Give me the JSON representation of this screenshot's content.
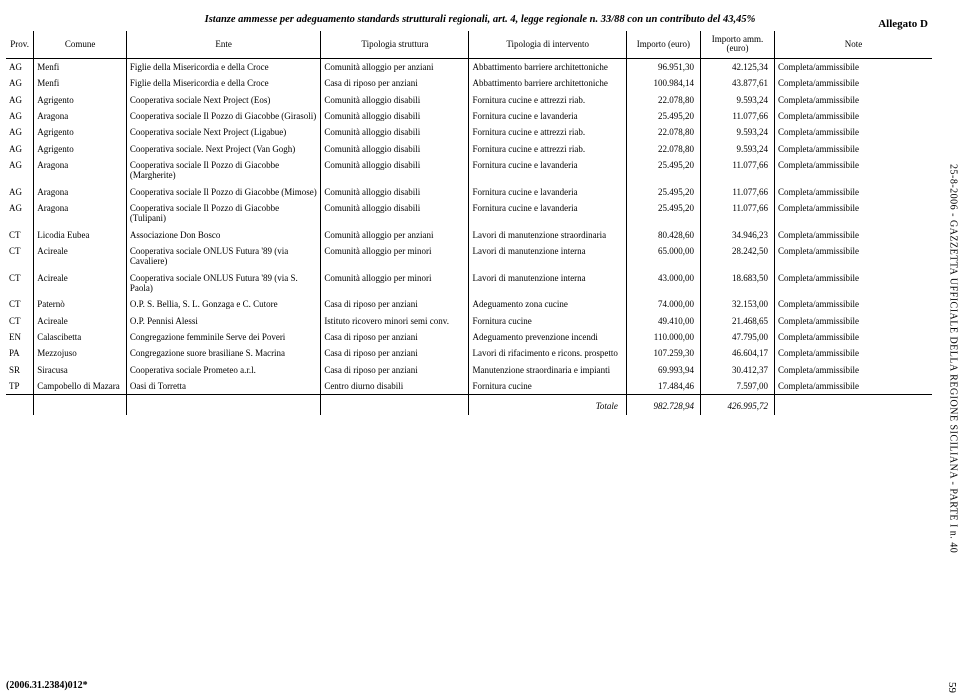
{
  "allegato": "Allegato D",
  "doc_title": "Istanze ammesse per adeguamento standards strutturali regionali, art. 4, legge regionale n. 33/88 con un contributo del 43,45%",
  "side_text": "25-8-2006 - GAZZETTA UFFICIALE DELLA REGIONE SICILIANA - PARTE I n. 40",
  "page_num": "59",
  "footer_code": "(2006.31.2384)012*",
  "headers": {
    "prov": "Prov.",
    "comune": "Comune",
    "ente": "Ente",
    "struttura": "Tipologia struttura",
    "intervento": "Tipologia di intervento",
    "importo": "Importo\n(euro)",
    "importo_amm": "Importo\namm.\n(euro)",
    "note": "Note"
  },
  "rows": [
    {
      "prov": "AG",
      "comune": "Menfi",
      "ente": "Figlie della Misericordia e della Croce",
      "strut": "Comunità alloggio per anziani",
      "interv": "Abbattimento barriere architettoniche",
      "imp1": "96.951,30",
      "imp2": "42.125,34",
      "note": "Completa/ammissibile"
    },
    {
      "prov": "AG",
      "comune": "Menfi",
      "ente": "Figlie della Misericordia e della Croce",
      "strut": "Casa di riposo per anziani",
      "interv": "Abbattimento barriere architettoniche",
      "imp1": "100.984,14",
      "imp2": "43.877,61",
      "note": "Completa/ammissibile"
    },
    {
      "prov": "AG",
      "comune": "Agrigento",
      "ente": "Cooperativa sociale Next Project (Eos)",
      "strut": "Comunità alloggio disabili",
      "interv": "Fornitura cucine e attrezzi riab.",
      "imp1": "22.078,80",
      "imp2": "9.593,24",
      "note": "Completa/ammissibile"
    },
    {
      "prov": "AG",
      "comune": "Aragona",
      "ente": "Cooperativa sociale Il Pozzo di Giacobbe (Girasoli)",
      "strut": "Comunità alloggio disabili",
      "interv": "Fornitura cucine e lavanderia",
      "imp1": "25.495,20",
      "imp2": "11.077,66",
      "note": "Completa/ammissibile"
    },
    {
      "prov": "AG",
      "comune": "Agrigento",
      "ente": "Cooperativa sociale Next Project (Ligabue)",
      "strut": "Comunità alloggio disabili",
      "interv": "Fornitura cucine e attrezzi riab.",
      "imp1": "22.078,80",
      "imp2": "9.593,24",
      "note": "Completa/ammissibile"
    },
    {
      "prov": "AG",
      "comune": "Agrigento",
      "ente": "Cooperativa sociale. Next Project (Van Gogh)",
      "strut": "Comunità alloggio disabili",
      "interv": "Fornitura cucine e attrezzi riab.",
      "imp1": "22.078,80",
      "imp2": "9.593,24",
      "note": "Completa/ammissibile"
    },
    {
      "prov": "AG",
      "comune": "Aragona",
      "ente": "Cooperativa sociale Il Pozzo di Giacobbe (Margherite)",
      "strut": "Comunità alloggio disabili",
      "interv": "Fornitura cucine e lavanderia",
      "imp1": "25.495,20",
      "imp2": "11.077,66",
      "note": "Completa/ammissibile"
    },
    {
      "prov": "AG",
      "comune": "Aragona",
      "ente": "Cooperativa sociale Il Pozzo di Giacobbe (Mimose)",
      "strut": "Comunità alloggio disabili",
      "interv": "Fornitura cucine e lavanderia",
      "imp1": "25.495,20",
      "imp2": "11.077,66",
      "note": "Completa/ammissibile"
    },
    {
      "prov": "AG",
      "comune": "Aragona",
      "ente": "Cooperativa sociale Il Pozzo di Giacobbe (Tulipani)",
      "strut": "Comunità alloggio disabili",
      "interv": "Fornitura cucine e lavanderia",
      "imp1": "25.495,20",
      "imp2": "11.077,66",
      "note": "Completa/ammissibile"
    },
    {
      "prov": "CT",
      "comune": "Licodia Eubea",
      "ente": "Associazione Don Bosco",
      "strut": "Comunità alloggio per anziani",
      "interv": "Lavori di manutenzione straordinaria",
      "imp1": "80.428,60",
      "imp2": "34.946,23",
      "note": "Completa/ammissibile"
    },
    {
      "prov": "CT",
      "comune": "Acireale",
      "ente": "Cooperativa sociale ONLUS Futura '89 (via Cavaliere)",
      "strut": "Comunità alloggio per minori",
      "interv": "Lavori di manutenzione interna",
      "imp1": "65.000,00",
      "imp2": "28.242,50",
      "note": "Completa/ammissibile"
    },
    {
      "prov": "CT",
      "comune": "Acireale",
      "ente": "Cooperativa sociale ONLUS Futura '89 (via S. Paola)",
      "strut": "Comunità alloggio per minori",
      "interv": "Lavori di manutenzione interna",
      "imp1": "43.000,00",
      "imp2": "18.683,50",
      "note": "Completa/ammissibile"
    },
    {
      "prov": "CT",
      "comune": "Paternò",
      "ente": "O.P. S. Bellia, S. L. Gonzaga e C. Cutore",
      "strut": "Casa di riposo per anziani",
      "interv": "Adeguamento zona cucine",
      "imp1": "74.000,00",
      "imp2": "32.153,00",
      "note": "Completa/ammissibile"
    },
    {
      "prov": "CT",
      "comune": "Acireale",
      "ente": "O.P. Pennisi Alessi",
      "strut": "Istituto ricovero minori semi conv.",
      "interv": "Fornitura cucine",
      "imp1": "49.410,00",
      "imp2": "21.468,65",
      "note": "Completa/ammissibile"
    },
    {
      "prov": "EN",
      "comune": "Calascibetta",
      "ente": "Congregazione femminile Serve dei Poveri",
      "strut": "Casa di riposo per anziani",
      "interv": "Adeguamento prevenzione incendi",
      "imp1": "110.000,00",
      "imp2": "47.795,00",
      "note": "Completa/ammissibile"
    },
    {
      "prov": "PA",
      "comune": "Mezzojuso",
      "ente": "Congregazione suore brasiliane S. Macrina",
      "strut": "Casa di riposo per anziani",
      "interv": "Lavori di rifacimento e ricons. prospetto",
      "imp1": "107.259,30",
      "imp2": "46.604,17",
      "note": "Completa/ammissibile"
    },
    {
      "prov": "SR",
      "comune": "Siracusa",
      "ente": "Cooperativa sociale Prometeo a.r.l.",
      "strut": "Casa di riposo per anziani",
      "interv": "Manutenzione straordinaria e impianti",
      "imp1": "69.993,94",
      "imp2": "30.412,37",
      "note": "Completa/ammissibile"
    },
    {
      "prov": "TP",
      "comune": "Campobello di Mazara",
      "ente": "Oasi di Torretta",
      "strut": "Centro diurno disabili",
      "interv": "Fornitura cucine",
      "imp1": "17.484,46",
      "imp2": "7.597,00",
      "note": "Completa/ammissibile"
    }
  ],
  "totale": {
    "label": "Totale",
    "imp1": "982.728,94",
    "imp2": "426.995,72"
  }
}
